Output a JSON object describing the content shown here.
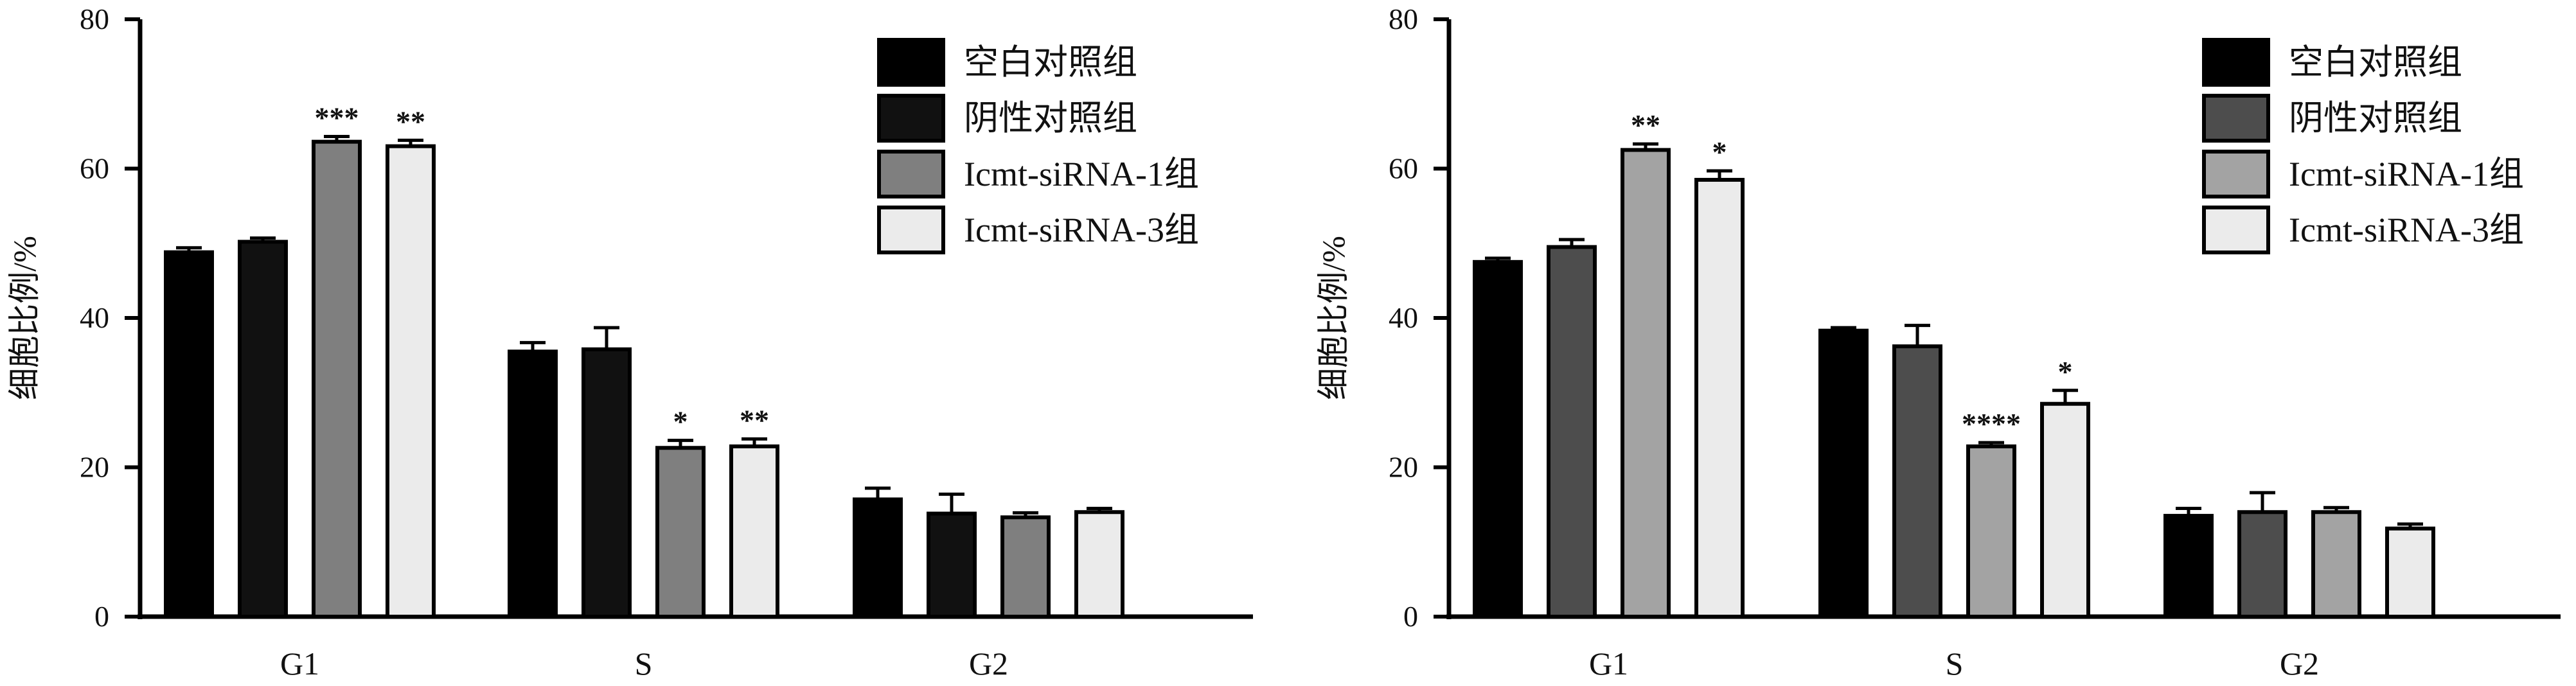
{
  "chart_data": [
    {
      "type": "bar",
      "ylabel": "细胞比例/%",
      "ylim": [
        0,
        80
      ],
      "yticks": [
        0,
        20,
        40,
        60,
        80
      ],
      "categories": [
        "G1",
        "S",
        "G2"
      ],
      "legend_position": "top-right",
      "series": [
        {
          "name": "空白对照组",
          "color": "#000000",
          "values": [
            48.8,
            35.5,
            15.7
          ],
          "errors": [
            0.6,
            1.2,
            1.5
          ],
          "significance": [
            "",
            "",
            ""
          ]
        },
        {
          "name": "阴性对照组",
          "color": "#111111",
          "values": [
            50.2,
            35.8,
            13.8
          ],
          "errors": [
            0.5,
            2.9,
            2.6
          ],
          "significance": [
            "",
            "",
            ""
          ]
        },
        {
          "name": "Icmt-siRNA-1组",
          "color": "#7f7f7f",
          "values": [
            63.6,
            22.6,
            13.3
          ],
          "errors": [
            0.7,
            1.0,
            0.6
          ],
          "significance": [
            "***",
            "*",
            ""
          ]
        },
        {
          "name": "Icmt-siRNA-3组",
          "color": "#ebebeb",
          "values": [
            63.0,
            22.8,
            14.0
          ],
          "errors": [
            0.8,
            1.0,
            0.5
          ],
          "significance": [
            "**",
            "**",
            ""
          ]
        }
      ]
    },
    {
      "type": "bar",
      "ylabel": "细胞比例/%",
      "ylim": [
        0,
        80
      ],
      "yticks": [
        0,
        20,
        40,
        60,
        80
      ],
      "categories": [
        "G1",
        "S",
        "G2"
      ],
      "legend_position": "top-right",
      "series": [
        {
          "name": "空白对照组",
          "color": "#000000",
          "values": [
            47.5,
            38.3,
            13.5
          ],
          "errors": [
            0.5,
            0.4,
            1.0
          ],
          "significance": [
            "",
            "",
            ""
          ]
        },
        {
          "name": "阴性对照组",
          "color": "#4d4d4d",
          "values": [
            49.5,
            36.2,
            14.0
          ],
          "errors": [
            1.0,
            2.8,
            2.6
          ],
          "significance": [
            "",
            "",
            ""
          ]
        },
        {
          "name": "Icmt-siRNA-1组",
          "color": "#a3a3a3",
          "values": [
            62.5,
            22.8,
            14.0
          ],
          "errors": [
            0.8,
            0.5,
            0.6
          ],
          "significance": [
            "**",
            "****",
            ""
          ]
        },
        {
          "name": "Icmt-siRNA-3组",
          "color": "#ebebeb",
          "values": [
            58.5,
            28.5,
            11.8
          ],
          "errors": [
            1.2,
            1.8,
            0.6
          ],
          "significance": [
            "*",
            "*",
            ""
          ]
        }
      ]
    }
  ]
}
